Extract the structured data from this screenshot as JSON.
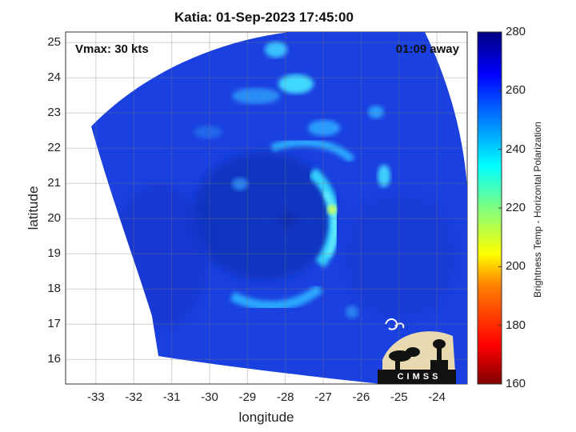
{
  "title": "Katia: 01-Sep-2023 17:45:00",
  "vmax_label": "Vmax: 30 kts",
  "away_label": "01:09 away",
  "logo_text": "CIMSS",
  "chart_data": {
    "type": "heatmap",
    "title": "Katia: 01-Sep-2023 17:45:00",
    "xlabel": "longitude",
    "ylabel": "latitude",
    "xlim": [
      -33.8,
      -23.2
    ],
    "ylim": [
      15.3,
      25.3
    ],
    "x_ticks": [
      -33,
      -32,
      -31,
      -30,
      -29,
      -28,
      -27,
      -26,
      -25,
      -24
    ],
    "y_ticks": [
      16,
      17,
      18,
      19,
      20,
      21,
      22,
      23,
      24,
      25
    ],
    "grid": true,
    "colorbar": {
      "label": "Brightness Temp - Horizontal Polarization",
      "min": 160,
      "max": 280,
      "ticks": [
        160,
        180,
        200,
        220,
        240,
        260,
        280
      ],
      "colormap": "jet"
    }
  },
  "colors": {
    "background_swath": "#1a40e0",
    "deep": "#0c2ab0",
    "bright": "#30c8ff"
  }
}
